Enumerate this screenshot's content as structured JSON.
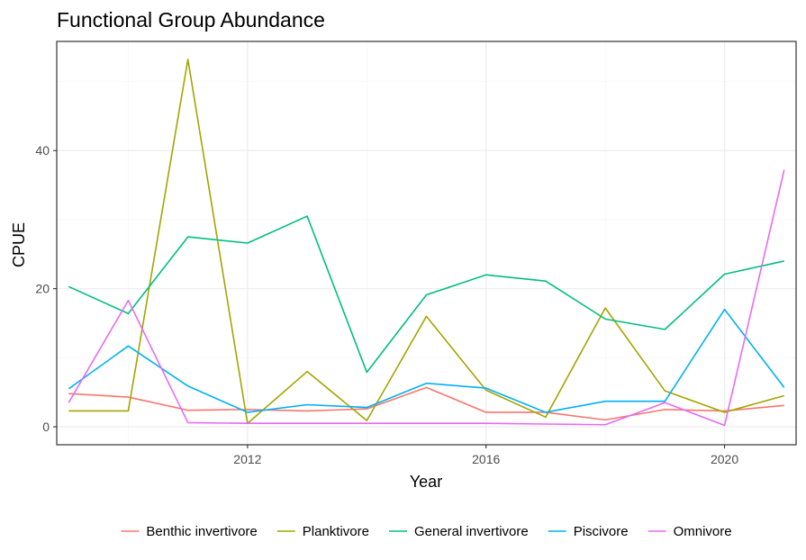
{
  "chart_data": {
    "type": "line",
    "title": "Functional Group Abundance",
    "xlabel": "Year",
    "ylabel": "CPUE",
    "x": [
      2009,
      2010,
      2011,
      2012,
      2013,
      2014,
      2015,
      2016,
      2017,
      2018,
      2019,
      2020,
      2021
    ],
    "xlim": [
      2008.8,
      2021.2
    ],
    "ylim": [
      -2.6,
      55.8
    ],
    "x_ticks": [
      2012,
      2016,
      2020
    ],
    "x_tick_labels": [
      "2012",
      "2016",
      "2020"
    ],
    "y_ticks": [
      0,
      20,
      40
    ],
    "y_tick_labels": [
      "0",
      "20",
      "40"
    ],
    "grid": true,
    "legend_position": "bottom",
    "series": [
      {
        "name": "Benthic invertivore",
        "color": "#F8766D",
        "values": [
          4.8,
          4.3,
          2.4,
          2.5,
          2.3,
          2.6,
          5.7,
          2.1,
          2.1,
          1.0,
          2.5,
          2.3,
          3.1
        ]
      },
      {
        "name": "Planktivore",
        "color": "#A3A500",
        "values": [
          2.3,
          2.3,
          53.2,
          0.5,
          8.0,
          0.9,
          16.0,
          5.3,
          1.4,
          17.2,
          5.2,
          2.1,
          4.5
        ]
      },
      {
        "name": "General invertivore",
        "color": "#00BF7D",
        "values": [
          20.3,
          16.4,
          27.5,
          26.6,
          30.5,
          7.9,
          19.1,
          22.0,
          21.1,
          15.6,
          14.1,
          22.1,
          24.0
        ]
      },
      {
        "name": "Piscivore",
        "color": "#00B0F6",
        "values": [
          5.5,
          11.7,
          5.9,
          2.1,
          3.2,
          2.8,
          6.3,
          5.6,
          2.1,
          3.7,
          3.7,
          17.0,
          5.7
        ]
      },
      {
        "name": "Omnivore",
        "color": "#E76BF3",
        "values": [
          3.5,
          18.3,
          0.6,
          0.5,
          0.5,
          0.5,
          0.5,
          0.5,
          0.4,
          0.3,
          3.5,
          0.2,
          37.2
        ]
      }
    ]
  }
}
